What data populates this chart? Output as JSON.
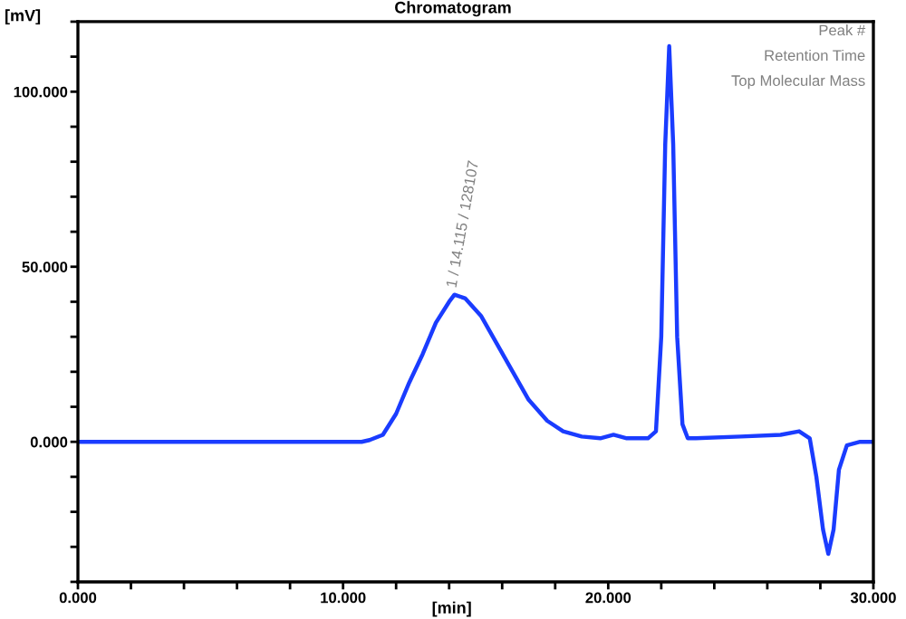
{
  "chart_data": {
    "type": "line",
    "title": "Chromatogram",
    "xlabel": "[min]",
    "ylabel": "[mV]",
    "annotations": [
      {
        "text": "1 / 14.115 / 128107",
        "x": 14.115,
        "y": 44
      },
      "Peak #",
      "Retention Time",
      "Top Molecular Mass"
    ],
    "x": [
      0,
      5,
      10,
      10.7,
      11.0,
      11.5,
      12.0,
      12.5,
      13.0,
      13.5,
      14.0,
      14.2,
      14.6,
      15.2,
      15.8,
      16.4,
      17.0,
      17.7,
      18.3,
      19.0,
      19.7,
      20.2,
      20.7,
      21.5,
      21.8,
      22.0,
      22.15,
      22.3,
      22.45,
      22.6,
      22.8,
      23.0,
      23.3,
      25.0,
      26.5,
      27.2,
      27.6,
      27.85,
      28.1,
      28.3,
      28.5,
      28.7,
      29.0,
      29.5,
      30.0
    ],
    "series": [
      {
        "color": "#1a3cff",
        "values": [
          0,
          0,
          0,
          0,
          0.5,
          2,
          8,
          17,
          25,
          34,
          40,
          42,
          41,
          36,
          28,
          20,
          12,
          6,
          3,
          1.5,
          1,
          2,
          1,
          1,
          3,
          30,
          85,
          113,
          85,
          30,
          5,
          1,
          1,
          1.5,
          2,
          3,
          1,
          -10,
          -25,
          -32,
          -25,
          -8,
          -1,
          0,
          0
        ]
      }
    ],
    "xlim": [
      0,
      30
    ],
    "ylim": [
      -40,
      120
    ],
    "xticks": [
      {
        "value": 0,
        "label": "0.000"
      },
      {
        "value": 2,
        "label": null
      },
      {
        "value": 4,
        "label": null
      },
      {
        "value": 6,
        "label": null
      },
      {
        "value": 8,
        "label": null
      },
      {
        "value": 10,
        "label": "10.000"
      },
      {
        "value": 12,
        "label": null
      },
      {
        "value": 14,
        "label": null
      },
      {
        "value": 16,
        "label": null
      },
      {
        "value": 18,
        "label": null
      },
      {
        "value": 20,
        "label": "20.000"
      },
      {
        "value": 22,
        "label": null
      },
      {
        "value": 24,
        "label": null
      },
      {
        "value": 26,
        "label": null
      },
      {
        "value": 28,
        "label": null
      },
      {
        "value": 30,
        "label": "30.000"
      }
    ],
    "yticks": [
      {
        "value": -40,
        "label": null
      },
      {
        "value": -30,
        "label": null
      },
      {
        "value": -20,
        "label": null
      },
      {
        "value": -10,
        "label": null
      },
      {
        "value": 0,
        "label": "0.000"
      },
      {
        "value": 10,
        "label": null
      },
      {
        "value": 20,
        "label": null
      },
      {
        "value": 30,
        "label": null
      },
      {
        "value": 40,
        "label": null
      },
      {
        "value": 50,
        "label": "50.000"
      },
      {
        "value": 60,
        "label": null
      },
      {
        "value": 70,
        "label": null
      },
      {
        "value": 80,
        "label": null
      },
      {
        "value": 90,
        "label": null
      },
      {
        "value": 100,
        "label": "100.000"
      },
      {
        "value": 110,
        "label": null
      },
      {
        "value": 120,
        "label": null
      }
    ],
    "grid": false,
    "legend": false,
    "marker": "none",
    "line_style": "solid"
  }
}
